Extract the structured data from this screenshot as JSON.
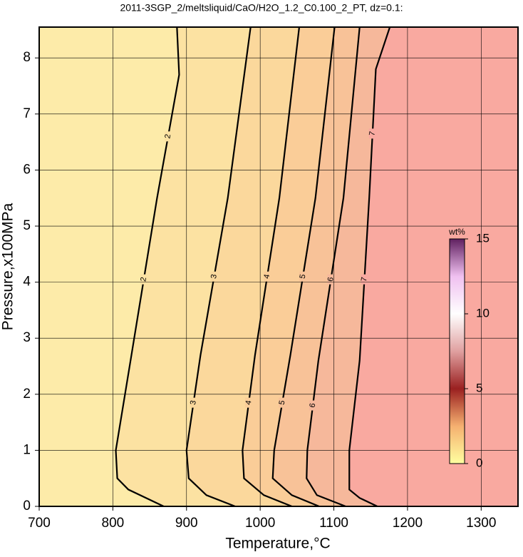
{
  "chart_data": {
    "type": "contour",
    "title": "2011-3SGP_2/meltsliquid/CaO/H2O_1.2_C0.100_2_PT, dz=0.1:",
    "x_label": "Temperature,°C",
    "y_label": "Pressure,x100MPa",
    "xlim": [
      700,
      1350
    ],
    "ylim": [
      0,
      8.55
    ],
    "xticks": [
      700,
      800,
      900,
      1000,
      1100,
      1200,
      1300
    ],
    "yticks": [
      0,
      1,
      2,
      3,
      4,
      5,
      6,
      7,
      8
    ],
    "grid": true,
    "background": "#fdeba9",
    "series": [
      {
        "name": "2",
        "color": "#fce2a2",
        "x": [
          887,
          890,
          860,
          824,
          804,
          806,
          821,
          869
        ],
        "y": [
          8.55,
          7.7,
          5.5,
          2.6,
          1.0,
          0.5,
          0.3,
          0
        ]
      },
      {
        "name": "3",
        "color": "#fbd89c",
        "x": [
          987,
          956,
          919,
          900,
          903,
          927,
          966
        ],
        "y": [
          8.55,
          5.5,
          2.7,
          1.0,
          0.5,
          0.2,
          0
        ]
      },
      {
        "name": "4",
        "color": "#facd98",
        "x": [
          1053,
          1026,
          993,
          976,
          978,
          1005,
          1043
        ],
        "y": [
          8.55,
          5.5,
          2.7,
          1.0,
          0.5,
          0.2,
          0
        ]
      },
      {
        "name": "5",
        "color": "#f8c298",
        "x": [
          1101,
          1075,
          1041,
          1019,
          1017,
          1043,
          1080
        ],
        "y": [
          8.55,
          5.5,
          2.7,
          1.0,
          0.5,
          0.2,
          0
        ]
      },
      {
        "name": "6",
        "color": "#f6b89b",
        "x": [
          1135,
          1113,
          1079,
          1064,
          1063,
          1077,
          1116
        ],
        "y": [
          8.55,
          5.5,
          2.6,
          1.0,
          0.5,
          0.2,
          0
        ]
      },
      {
        "name": "7",
        "color": "#f9a9a0",
        "x": [
          1176,
          1157,
          1148,
          1135,
          1121,
          1121,
          1135,
          1159
        ],
        "y": [
          8.55,
          7.8,
          5.5,
          2.6,
          1.0,
          0.3,
          0.15,
          0
        ]
      }
    ],
    "colorbar": {
      "label": "wt%",
      "lim": [
        0,
        15
      ],
      "ticks": [
        0,
        5,
        10,
        15
      ],
      "colors": [
        "#ffffa0",
        "#f5b070",
        "#9a2020",
        "#e0a0a0",
        "#ffffff",
        "#f0c0f0",
        "#602060"
      ]
    }
  }
}
